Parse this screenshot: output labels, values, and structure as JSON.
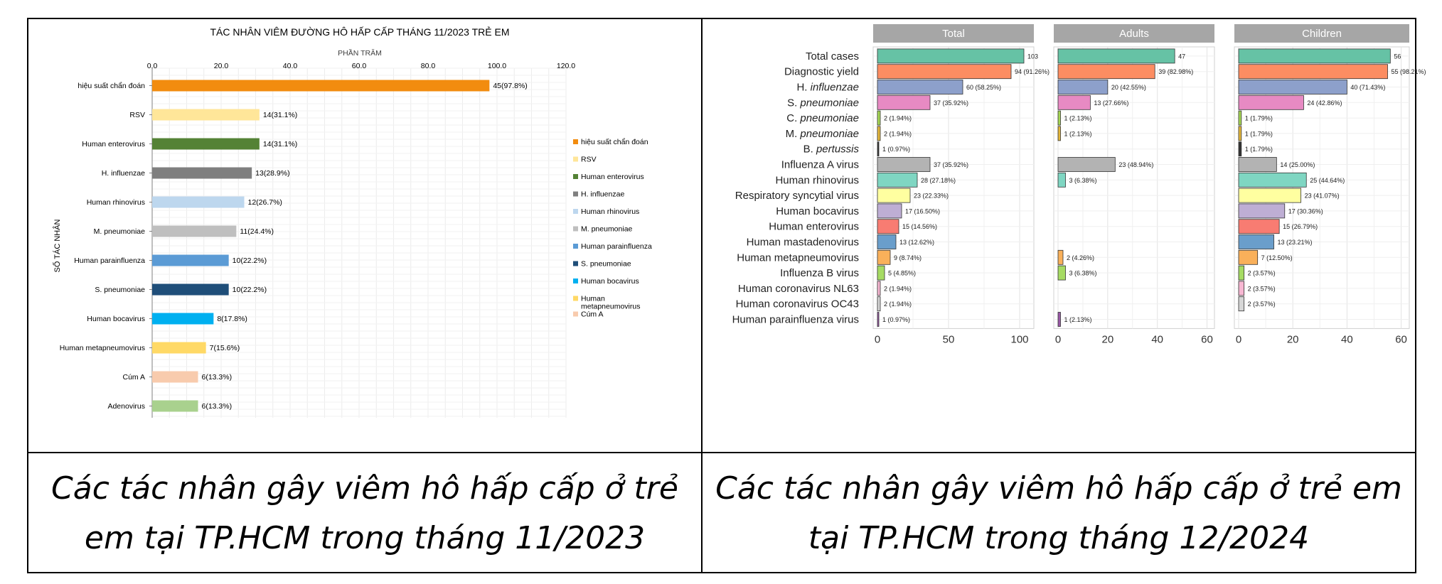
{
  "chart_data": [
    {
      "type": "bar",
      "orientation": "horizontal",
      "title": "TÁC NHÂN VIÊM ĐƯỜNG HÔ HẤP CẤP THÁNG 11/2023 TRẺ EM",
      "xlabel": "PHẦN TRĂM",
      "ylabel": "SỐ TÁC NHÂN",
      "xlim": [
        0,
        120
      ],
      "xticks": [
        "0.0",
        "20.0",
        "40.0",
        "60.0",
        "80.0",
        "100.0",
        "120.0"
      ],
      "grid": true,
      "legend_position": "right",
      "categories": [
        "hiệu suất chẩn đoán",
        "RSV",
        "Human enterovirus",
        "H. influenzae",
        "Human rhinovirus",
        "M. pneumoniae",
        "Human parainfluenza",
        "S. pneumoniae",
        "Human bocavirus",
        "Human metapneumovirus",
        "Cúm A",
        "Adenovirus"
      ],
      "values": [
        97.8,
        31.1,
        31.1,
        28.9,
        26.7,
        24.4,
        22.2,
        22.2,
        17.8,
        15.6,
        13.3,
        13.3
      ],
      "labels": [
        "45(97.8%)",
        "14(31.1%)",
        "14(31.1%)",
        "13(28.9%)",
        "12(26.7%)",
        "11(24.4%)",
        "10(22.2%)",
        "10(22.2%)",
        "8(17.8%)",
        "7(15.6%)",
        "6(13.3%)",
        "6(13.3%)"
      ],
      "colors": [
        "#F28C0F",
        "#FFE699",
        "#548235",
        "#7F7F7F",
        "#BDD7EE",
        "#BFBFBF",
        "#5B9BD5",
        "#1F4E79",
        "#00B0F0",
        "#FFD966",
        "#F8CBAD",
        "#A9D18E"
      ],
      "legend": [
        "hiệu suất chẩn đoán",
        "RSV",
        "Human enterovirus",
        "H. influenzae",
        "Human rhinovirus",
        "M. pneumoniae",
        "Human parainfluenza",
        "S. pneumoniae",
        "Human bocavirus",
        "Human metapneumovirus",
        "Cúm A"
      ],
      "legend_colors": [
        "#F28C0F",
        "#FFE699",
        "#548235",
        "#7F7F7F",
        "#BDD7EE",
        "#BFBFBF",
        "#5B9BD5",
        "#1F4E79",
        "#00B0F0",
        "#FFD966",
        "#F8CBAD"
      ]
    },
    {
      "type": "bar",
      "orientation": "horizontal",
      "facets": [
        "Total",
        "Adults",
        "Children"
      ],
      "categories": [
        {
          "text": "Total cases",
          "italic": ""
        },
        {
          "text": "Diagnostic yield",
          "italic": ""
        },
        {
          "text": "H. ",
          "italic": "influenzae"
        },
        {
          "text": "S. ",
          "italic": "pneumoniae"
        },
        {
          "text": "C. ",
          "italic": "pneumoniae"
        },
        {
          "text": "M. ",
          "italic": "pneumoniae"
        },
        {
          "text": "B. ",
          "italic": "pertussis"
        },
        {
          "text": "Influenza A virus",
          "italic": ""
        },
        {
          "text": "Human rhinovirus",
          "italic": ""
        },
        {
          "text": "Respiratory syncytial virus",
          "italic": ""
        },
        {
          "text": "Human bocavirus",
          "italic": ""
        },
        {
          "text": "Human enterovirus",
          "italic": ""
        },
        {
          "text": "Human mastadenovirus",
          "italic": ""
        },
        {
          "text": "Human metapneumovirus",
          "italic": ""
        },
        {
          "text": "Influenza B virus",
          "italic": ""
        },
        {
          "text": "Human coronavirus NL63",
          "italic": ""
        },
        {
          "text": "Human coronavirus OC43",
          "italic": ""
        },
        {
          "text": "Human parainfluenza virus",
          "italic": ""
        }
      ],
      "colors": [
        "#66C2A5",
        "#FC8D62",
        "#8DA0CB",
        "#E78AC3",
        "#A6D854",
        "#E5B83B",
        "#333333",
        "#B3B3B3",
        "#7FD6C2",
        "#FFFFA0",
        "#BEAED4",
        "#F87C72",
        "#6A9ECB",
        "#F9B05A",
        "#A6DB63",
        "#F7B7D2",
        "#D6D6D6",
        "#9B5AA8"
      ],
      "series": [
        {
          "name": "Total",
          "xlim": [
            0,
            110
          ],
          "xticks": [
            "0",
            "50",
            "100"
          ],
          "values": [
            103,
            94,
            60,
            37,
            2,
            2,
            1,
            37,
            28,
            23,
            17,
            15,
            13,
            9,
            5,
            2,
            2,
            1
          ],
          "labels": [
            "103",
            "94 (91.26%)",
            "60 (58.25%)",
            "37 (35.92%)",
            "2 (1.94%)",
            "2 (1.94%)",
            "1 (0.97%)",
            "37 (35.92%)",
            "28 (27.18%)",
            "23 (22.33%)",
            "17 (16.50%)",
            "15 (14.56%)",
            "13 (12.62%)",
            "9 (8.74%)",
            "5 (4.85%)",
            "2 (1.94%)",
            "2 (1.94%)",
            "1 (0.97%)"
          ]
        },
        {
          "name": "Adults",
          "xlim": [
            0,
            63
          ],
          "xticks": [
            "0",
            "20",
            "40",
            "60"
          ],
          "values": [
            47,
            39,
            20,
            13,
            1,
            1,
            null,
            23,
            3,
            null,
            null,
            null,
            null,
            2,
            3,
            null,
            null,
            1
          ],
          "labels": [
            "47",
            "39 (82.98%)",
            "20 (42.55%)",
            "13 (27.66%)",
            "1 (2.13%)",
            "1 (2.13%)",
            "",
            "23 (48.94%)",
            "3 (6.38%)",
            "",
            "",
            "",
            "",
            "2 (4.26%)",
            "3 (6.38%)",
            "",
            "",
            "1 (2.13%)"
          ]
        },
        {
          "name": "Children",
          "xlim": [
            0,
            63
          ],
          "xticks": [
            "0",
            "20",
            "40",
            "60"
          ],
          "values": [
            56,
            55,
            40,
            24,
            1,
            1,
            1,
            14,
            25,
            23,
            17,
            15,
            13,
            7,
            2,
            2,
            2,
            null
          ],
          "labels": [
            "56",
            "55 (98.21%)",
            "40 (71.43%)",
            "24 (42.86%)",
            "1 (1.79%)",
            "1 (1.79%)",
            "1 (1.79%)",
            "14 (25.00%)",
            "25 (44.64%)",
            "23 (41.07%)",
            "17 (30.36%)",
            "15 (26.79%)",
            "13 (23.21%)",
            "7 (12.50%)",
            "2 (3.57%)",
            "2 (3.57%)",
            "2 (3.57%)",
            ""
          ]
        }
      ]
    }
  ],
  "captions": {
    "left": "Các tác nhân gây viêm hô hấp cấp ở trẻ em tại TP.HCM trong tháng 11/2023",
    "right": "Các tác nhân gây viêm hô hấp cấp ở trẻ em tại TP.HCM trong tháng 12/2024"
  }
}
